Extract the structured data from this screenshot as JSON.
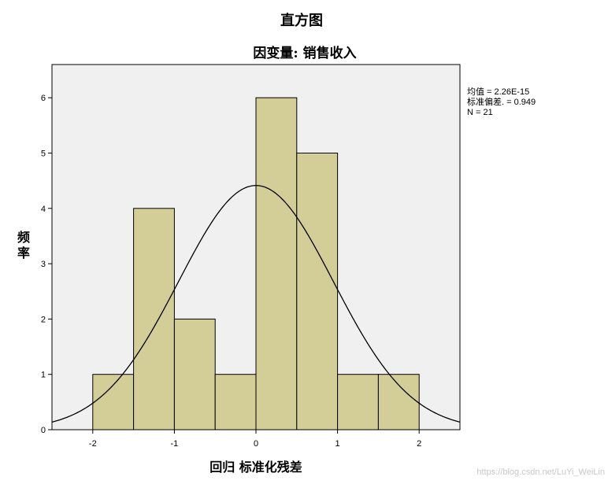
{
  "chart_data": {
    "type": "bar",
    "title": "直方图",
    "subtitle": "因变量: 销售收入",
    "xlabel": "回归 标准化残差",
    "ylabel": [
      "频",
      "率"
    ],
    "bin_edges": [
      -2,
      -1.5,
      -1,
      -0.5,
      0,
      0.5,
      1,
      1.5,
      2
    ],
    "values": [
      1,
      4,
      2,
      1,
      6,
      5,
      1,
      1
    ],
    "xlim": [
      -2.5,
      2.5
    ],
    "ylim": [
      0,
      6.6
    ],
    "x_ticks": [
      -2,
      -1,
      0,
      1,
      2
    ],
    "y_ticks": [
      0,
      1,
      2,
      3,
      4,
      5,
      6
    ],
    "normal_curve": {
      "mean": 2.26e-15,
      "sd": 0.949,
      "n": 21,
      "bin_width": 0.5
    },
    "stats": [
      "均值 = 2.26E-15",
      "标准偏差. = 0.949",
      "N = 21"
    ],
    "grid": false,
    "colors": {
      "bar_fill": "#D3CE98",
      "bar_stroke": "#000000",
      "plot_bg": "#F0F0F0",
      "curve": "#000000"
    }
  },
  "watermark": "https://blog.csdn.net/LuYi_WeiLin"
}
